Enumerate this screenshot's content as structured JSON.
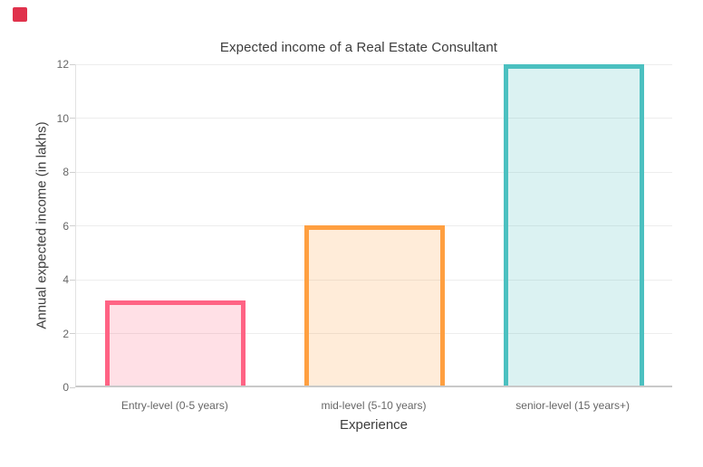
{
  "marker": {
    "name": "red-square",
    "color": "#e0324c"
  },
  "chart_data": {
    "type": "bar",
    "title": "Expected income of a Real Estate Consultant",
    "xlabel": "Experience",
    "ylabel": "Annual expected income (in lakhs)",
    "categories": [
      "Entry-level (0-5 years)",
      "mid-level (5-10 years)",
      "senior-level (15 years+)"
    ],
    "values": [
      3.15,
      5.95,
      11.95
    ],
    "ylim": [
      0,
      12
    ],
    "yticks": [
      0,
      2,
      4,
      6,
      8,
      10,
      12
    ],
    "grid": "horizontal-only",
    "legend": "none",
    "series_styles": [
      {
        "name": "entry-level",
        "border": "#FF6384",
        "fill": "rgba(255, 99, 132, 0.2)"
      },
      {
        "name": "mid-level",
        "border": "#FF9F40",
        "fill": "rgba(255, 159, 64, 0.2)"
      },
      {
        "name": "senior-level",
        "border": "#4BC0C0",
        "fill": "rgba(75, 192, 192, 0.2)"
      }
    ],
    "axis_colors": {
      "gridline": "#ededed",
      "axis_line": "#c9c9c9",
      "tick_text": "#666666",
      "title_text": "#3d3d3d"
    }
  }
}
